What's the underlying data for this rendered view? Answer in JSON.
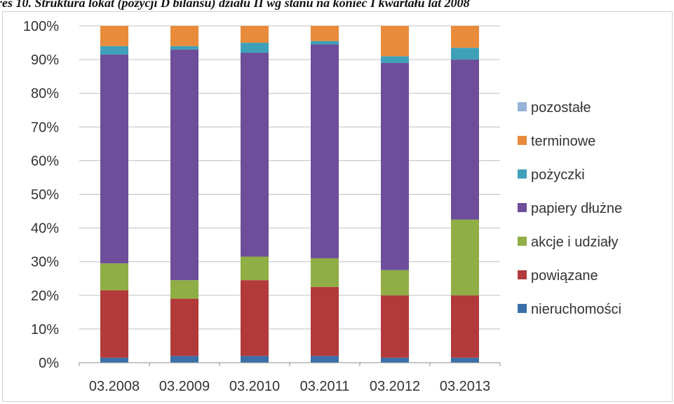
{
  "chart_data": {
    "type": "bar",
    "stacked": true,
    "percent_stacked": true,
    "title": "res 10. Struktura lokat (pozycji D bilansu) działu II wg stanu na koniec I kwartału lat 2008",
    "categories": [
      "03.2008",
      "03.2009",
      "03.2010",
      "03.2011",
      "03.2012",
      "03.2013"
    ],
    "y_ticks": [
      "0%",
      "10%",
      "20%",
      "30%",
      "40%",
      "50%",
      "60%",
      "70%",
      "80%",
      "90%",
      "100%"
    ],
    "ylim": [
      0,
      100
    ],
    "grid": true,
    "legend_position": "right",
    "series": [
      {
        "name": "nieruchomości",
        "color": "#3A6FA8",
        "values": [
          1.5,
          2.0,
          2.0,
          2.0,
          1.5,
          1.5
        ]
      },
      {
        "name": "powiązane",
        "color": "#B33A3A",
        "values": [
          20.0,
          17.0,
          22.5,
          20.5,
          18.5,
          18.5
        ]
      },
      {
        "name": "akcje i udziały",
        "color": "#8FAE45",
        "values": [
          8.0,
          5.5,
          7.0,
          8.5,
          7.5,
          22.5
        ]
      },
      {
        "name": "papiery dłużne",
        "color": "#6E4E9A",
        "values": [
          62.0,
          68.5,
          60.5,
          63.5,
          61.5,
          47.5
        ]
      },
      {
        "name": "pożyczki",
        "color": "#3FA1B9",
        "values": [
          2.5,
          1.0,
          3.0,
          1.0,
          2.0,
          3.5
        ]
      },
      {
        "name": "terminowe",
        "color": "#E88B3A",
        "values": [
          6.0,
          6.0,
          5.0,
          4.5,
          9.0,
          6.5
        ]
      },
      {
        "name": "pozostałe",
        "color": "#95B3D7",
        "values": [
          0.0,
          0.0,
          0.0,
          0.0,
          0.0,
          0.0
        ]
      }
    ],
    "legend_order": [
      "pozostałe",
      "terminowe",
      "pożyczki",
      "papiery dłużne",
      "akcje i udziały",
      "powiązane",
      "nieruchomości"
    ]
  }
}
